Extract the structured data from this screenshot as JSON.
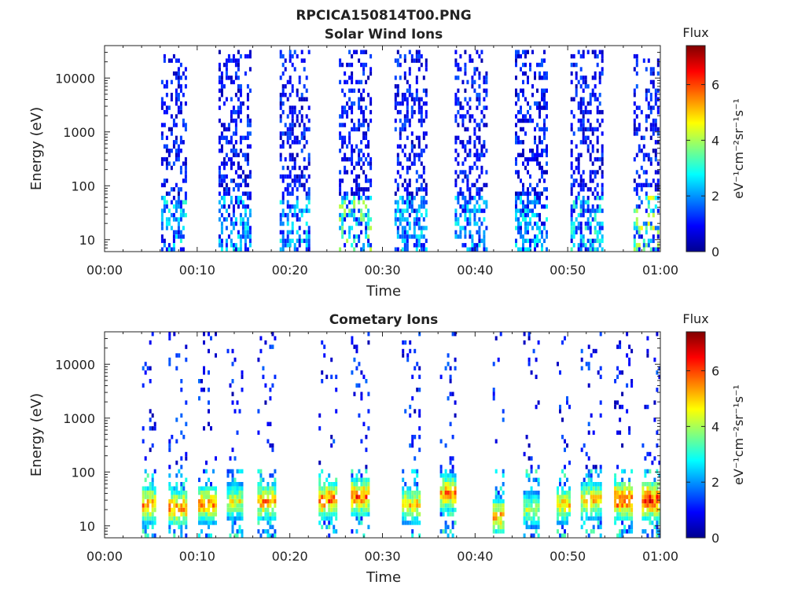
{
  "figure": {
    "filename": "RPCICA150814T00.PNG"
  },
  "colorbar": {
    "title": "Flux",
    "label": "eV⁻¹cm⁻²sr⁻¹s⁻¹",
    "ticks": [
      "0",
      "2",
      "4",
      "6"
    ],
    "range": [
      0,
      7.4
    ],
    "colormap": "jet"
  },
  "chart_data": [
    {
      "type": "heatmap",
      "title": "Solar Wind Ions",
      "xlabel": "Time",
      "ylabel": "Energy (eV)",
      "x_ticks": [
        "00:00",
        "00:10",
        "00:20",
        "00:30",
        "00:40",
        "00:50",
        "01:00"
      ],
      "xlim_minutes": [
        0,
        60
      ],
      "y_ticks": [
        "10",
        "100",
        "1000",
        "10000"
      ],
      "y_scale": "log",
      "ylim": [
        6,
        40000
      ],
      "value_range": [
        0,
        7.4
      ],
      "bursts": [
        {
          "center_min": 7.5,
          "duration_min": 2.8,
          "energy_max_ev": 30000,
          "peak_flux": 3.2
        },
        {
          "center_min": 14.0,
          "duration_min": 3.4,
          "energy_max_ev": 35000,
          "peak_flux": 3.0
        },
        {
          "center_min": 20.5,
          "duration_min": 3.2,
          "energy_max_ev": 35000,
          "peak_flux": 3.0
        },
        {
          "center_min": 27.0,
          "duration_min": 3.4,
          "energy_max_ev": 35000,
          "peak_flux": 4.2
        },
        {
          "center_min": 33.0,
          "duration_min": 3.4,
          "energy_max_ev": 35000,
          "peak_flux": 3.0
        },
        {
          "center_min": 39.5,
          "duration_min": 3.4,
          "energy_max_ev": 35000,
          "peak_flux": 3.0
        },
        {
          "center_min": 46.0,
          "duration_min": 3.4,
          "energy_max_ev": 35000,
          "peak_flux": 3.0
        },
        {
          "center_min": 52.0,
          "duration_min": 3.4,
          "energy_max_ev": 35000,
          "peak_flux": 3.5
        },
        {
          "center_min": 58.5,
          "duration_min": 2.8,
          "energy_max_ev": 30000,
          "peak_flux": 4.8
        }
      ]
    },
    {
      "type": "heatmap",
      "title": "Cometary Ions",
      "xlabel": "Time",
      "ylabel": "Energy (eV)",
      "x_ticks": [
        "00:00",
        "00:10",
        "00:20",
        "00:30",
        "00:40",
        "00:50",
        "01:00"
      ],
      "xlim_minutes": [
        0,
        60
      ],
      "y_ticks": [
        "10",
        "100",
        "1000",
        "10000"
      ],
      "y_scale": "log",
      "ylim": [
        6,
        40000
      ],
      "value_range": [
        0,
        7.4
      ],
      "bursts": [
        {
          "center_min": 4.8,
          "duration_min": 1.5,
          "energy_peak_ev": 25,
          "peak_flux": 6.0
        },
        {
          "center_min": 7.8,
          "duration_min": 1.8,
          "energy_peak_ev": 22,
          "peak_flux": 6.2
        },
        {
          "center_min": 11.0,
          "duration_min": 1.8,
          "energy_peak_ev": 25,
          "peak_flux": 6.0
        },
        {
          "center_min": 14.0,
          "duration_min": 1.6,
          "energy_peak_ev": 28,
          "peak_flux": 5.0
        },
        {
          "center_min": 17.5,
          "duration_min": 2.0,
          "energy_peak_ev": 28,
          "peak_flux": 6.0
        },
        {
          "center_min": 24.0,
          "duration_min": 1.8,
          "energy_peak_ev": 30,
          "peak_flux": 6.5
        },
        {
          "center_min": 27.5,
          "duration_min": 1.8,
          "energy_peak_ev": 35,
          "peak_flux": 6.5
        },
        {
          "center_min": 33.0,
          "duration_min": 1.8,
          "energy_peak_ev": 25,
          "peak_flux": 5.5
        },
        {
          "center_min": 37.0,
          "duration_min": 1.6,
          "energy_peak_ev": 40,
          "peak_flux": 6.0
        },
        {
          "center_min": 42.5,
          "duration_min": 1.2,
          "energy_peak_ev": 15,
          "peak_flux": 6.0
        },
        {
          "center_min": 46.0,
          "duration_min": 1.6,
          "energy_peak_ev": 20,
          "peak_flux": 4.5
        },
        {
          "center_min": 49.5,
          "duration_min": 1.4,
          "energy_peak_ev": 25,
          "peak_flux": 5.5
        },
        {
          "center_min": 52.5,
          "duration_min": 2.2,
          "energy_peak_ev": 30,
          "peak_flux": 5.5
        },
        {
          "center_min": 56.0,
          "duration_min": 2.0,
          "energy_peak_ev": 30,
          "peak_flux": 7.0
        },
        {
          "center_min": 59.0,
          "duration_min": 2.0,
          "energy_peak_ev": 30,
          "peak_flux": 7.0
        }
      ]
    }
  ]
}
